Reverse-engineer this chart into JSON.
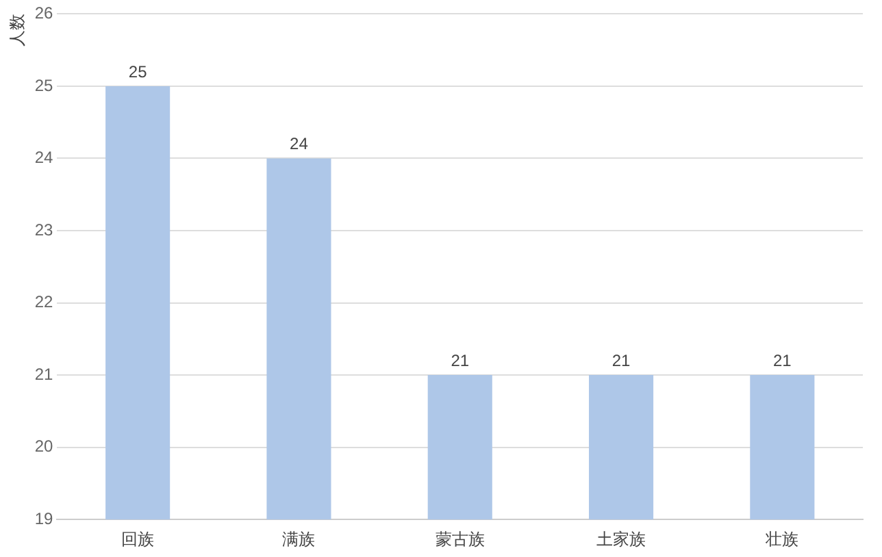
{
  "chart_data": {
    "type": "bar",
    "ylabel": "人数",
    "categories": [
      "回族",
      "满族",
      "蒙古族",
      "土家族",
      "壮族"
    ],
    "values": [
      25,
      24,
      21,
      21,
      21
    ],
    "color": "#aec7e8",
    "ylim": [
      19,
      26
    ],
    "yticks": [
      19,
      20,
      21,
      22,
      23,
      24,
      25,
      26
    ],
    "grid": "y",
    "data_labels": true,
    "legend": false
  }
}
